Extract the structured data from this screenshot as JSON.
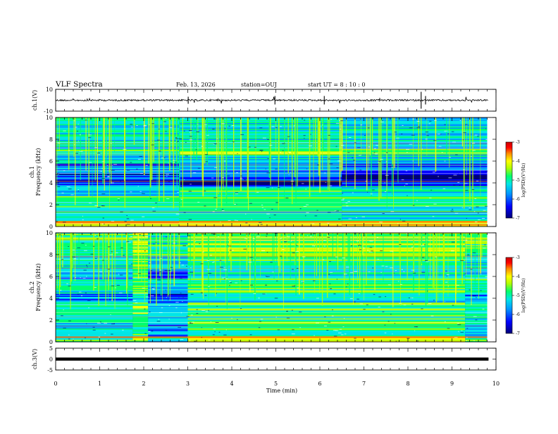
{
  "header": {
    "title": "VLF Spectra",
    "date": "Feb. 13, 2026",
    "station": "station=OUJ",
    "start": "start  UT =   8  : 10 : 0"
  },
  "chart_data": [
    {
      "type": "line",
      "name": "ch1-waveform",
      "ylabel": "ch.1(V)",
      "yticks": [
        "10",
        "-10"
      ],
      "ylim": [
        -10,
        10
      ],
      "xlim": [
        0,
        10
      ],
      "trace_level": 0,
      "trace_color": "#000000"
    },
    {
      "type": "heatmap",
      "name": "ch1-spectrogram",
      "ylabel": "ch.1\nFrequency (kHz)",
      "yticks": [
        "0",
        "2",
        "4",
        "6",
        "8",
        "10"
      ],
      "ylim": [
        0,
        10
      ],
      "xlim": [
        0,
        10
      ],
      "data_extent_x": [
        0,
        9.8
      ],
      "colorbar": {
        "label": "log(PSD)(V²/Hz)",
        "ticks": [
          "-3",
          "-4",
          "-5",
          "-6",
          "-7"
        ],
        "range": [
          -7,
          -3
        ]
      }
    },
    {
      "type": "heatmap",
      "name": "ch2-spectrogram",
      "ylabel": "ch.2\nFrequency (kHz)",
      "yticks": [
        "0",
        "2",
        "4",
        "6",
        "8",
        "10"
      ],
      "ylim": [
        0,
        10
      ],
      "xlim": [
        0,
        10
      ],
      "data_extent_x": [
        0,
        9.8
      ],
      "colorbar": {
        "label": "log(PSD)(V²/Hz)",
        "ticks": [
          "-3",
          "-4",
          "-5",
          "-6",
          "-7"
        ],
        "range": [
          -7,
          -3
        ]
      }
    },
    {
      "type": "line",
      "name": "ch3-waveform",
      "ylabel": "ch.3(V)",
      "yticks": [
        "5",
        "0",
        "-5"
      ],
      "ylim": [
        -5,
        5
      ],
      "xlim": [
        0,
        10
      ],
      "trace_level": 0,
      "trace_color": "#000000"
    }
  ],
  "xaxis": {
    "label": "Time (min)",
    "ticks": [
      "0",
      "1",
      "2",
      "3",
      "4",
      "5",
      "6",
      "7",
      "8",
      "9",
      "10"
    ]
  },
  "colormap": [
    "#000078",
    "#0000ff",
    "#0096ff",
    "#00e6e6",
    "#00ff6e",
    "#b4ff00",
    "#ffff00",
    "#ff8c00",
    "#ff0000",
    "#c80000"
  ]
}
